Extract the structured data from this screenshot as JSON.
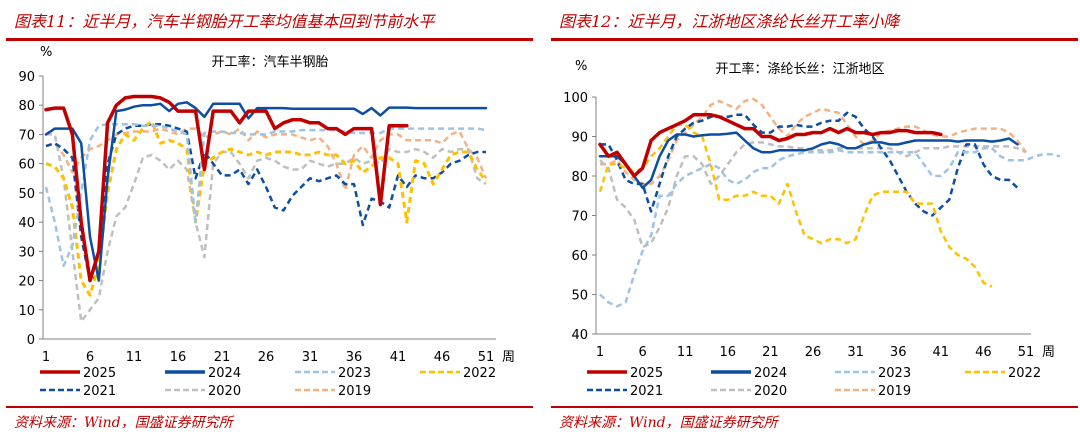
{
  "chart_data": [
    {
      "type": "line",
      "figure_title": "图表11：近半月，汽车半钢胎开工率均值基本回到节前水平",
      "title": "开工率：汽车半钢胎",
      "ylabel": "%",
      "xlabel": "周",
      "ylim": [
        0,
        90
      ],
      "yticks": [
        0,
        10,
        20,
        30,
        40,
        50,
        60,
        70,
        80,
        90
      ],
      "xticks": [
        1,
        6,
        11,
        16,
        21,
        26,
        31,
        36,
        41,
        46,
        51
      ],
      "source": "资料来源：Wind，国盛证券研究所",
      "series": [
        {
          "name": "2025",
          "color": "#c00000",
          "dash": false,
          "width": 3.5,
          "values": [
            78.5,
            79,
            79,
            70,
            40,
            20,
            30,
            74,
            80,
            82.5,
            83,
            83,
            83,
            82.5,
            81,
            78,
            78,
            78,
            58,
            78,
            78,
            78,
            74,
            78,
            78,
            78,
            72,
            74,
            75,
            75,
            74,
            74,
            72,
            72,
            70,
            72,
            72,
            72,
            46,
            73,
            73,
            73
          ]
        },
        {
          "name": "2024",
          "color": "#0b4ea2",
          "dash": false,
          "width": 2.5,
          "values": [
            70,
            72,
            72,
            72,
            67,
            35,
            20,
            55,
            78,
            78.5,
            79.5,
            80,
            80,
            80.5,
            78,
            80.5,
            81,
            79,
            76,
            80.5,
            80.5,
            80.5,
            80.5,
            75.5,
            79,
            79,
            79,
            79,
            78.8,
            78.8,
            78.8,
            78.8,
            78.8,
            78.8,
            78.8,
            78.8,
            77,
            79,
            76.5,
            79.2,
            79.2,
            79.2,
            79,
            79,
            79,
            79,
            79,
            79,
            79,
            79,
            79
          ]
        },
        {
          "name": "2023",
          "color": "#9dc3e6",
          "dash": true,
          "width": 2.5,
          "values": [
            52,
            40,
            25,
            32,
            50,
            68,
            73,
            73.5,
            73.5,
            73.5,
            73.5,
            73,
            73,
            73,
            72,
            71,
            70,
            40,
            70.5,
            71,
            71,
            70.5,
            70.5,
            70,
            70,
            70,
            71,
            71,
            71,
            71.5,
            71.5,
            71.5,
            71.5,
            71.5,
            71,
            70.5,
            70.5,
            70.5,
            70.5,
            72,
            72,
            72,
            72,
            72,
            72,
            72,
            72,
            72,
            72,
            72,
            71.5
          ]
        },
        {
          "name": "2022",
          "color": "#ffc000",
          "dash": true,
          "width": 3,
          "values": [
            60,
            59,
            55,
            45,
            20,
            15,
            25,
            50,
            65,
            70,
            68,
            72,
            74.5,
            67,
            68,
            67,
            65,
            40,
            60,
            62,
            64,
            65,
            64,
            63,
            64,
            63,
            64,
            64,
            64,
            63,
            63,
            64,
            63,
            63,
            60,
            61,
            57,
            59,
            62,
            62,
            60,
            40,
            61,
            60,
            53,
            58,
            63,
            64,
            64,
            58,
            54
          ]
        },
        {
          "name": "2021",
          "color": "#0b4ea2",
          "dash": true,
          "width": 2.5,
          "values": [
            66,
            67,
            65,
            62,
            35,
            20,
            22,
            60,
            70,
            72,
            73,
            73,
            73.5,
            73.5,
            73,
            72,
            71,
            55,
            64,
            60,
            56,
            56,
            58,
            53,
            58,
            52,
            45,
            44,
            49,
            52,
            55,
            54,
            55,
            56,
            53,
            53,
            39,
            48,
            47,
            45,
            56,
            52,
            56,
            55,
            55,
            57,
            60,
            61,
            63,
            64,
            64
          ]
        },
        {
          "name": "2020",
          "color": "#bfbfbf",
          "dash": true,
          "width": 2.5,
          "values": [
            70,
            70,
            55,
            30,
            6,
            10,
            14,
            30,
            42,
            45,
            53,
            62,
            63,
            61,
            58,
            61,
            58,
            40,
            28,
            60,
            64,
            64,
            60,
            55,
            61,
            62,
            61,
            59,
            58,
            58,
            61,
            60,
            59,
            60,
            60,
            62,
            60,
            61,
            60,
            65,
            64,
            64,
            65,
            64,
            62,
            65,
            64,
            65,
            65,
            55,
            53
          ]
        },
        {
          "name": "2019",
          "color": "#f4b183",
          "dash": true,
          "width": 2.5,
          "values": [
            66,
            67,
            63,
            57,
            62,
            65,
            66,
            68,
            70,
            70.5,
            71,
            71,
            71,
            72,
            71,
            70,
            72,
            72,
            69,
            70,
            71,
            70,
            72,
            68,
            71,
            69,
            70,
            70,
            70,
            69,
            68,
            69,
            66,
            60,
            51,
            63,
            66,
            62,
            68,
            70,
            70,
            68,
            68,
            68,
            68,
            67,
            70,
            71,
            65,
            62,
            55
          ]
        }
      ]
    },
    {
      "type": "line",
      "figure_title": "图表12：近半月，江浙地区涤纶长丝开工率小降",
      "title": "开工率：涤纶长丝：江浙地区",
      "ylabel": "%",
      "xlabel": "周",
      "ylim": [
        40,
        100
      ],
      "yticks": [
        40,
        50,
        60,
        70,
        80,
        90,
        100
      ],
      "xticks": [
        1,
        6,
        11,
        16,
        21,
        26,
        31,
        36,
        41,
        46,
        51
      ],
      "source": "资料来源：Wind，国盛证券研究所",
      "series": [
        {
          "name": "2025",
          "color": "#c00000",
          "dash": false,
          "width": 3.5,
          "values": [
            88,
            85,
            86,
            83,
            80,
            82,
            89,
            91,
            92,
            93,
            94,
            95.5,
            95.5,
            95.5,
            95,
            94,
            93,
            92,
            92,
            90,
            90,
            89,
            89.5,
            90.5,
            90.5,
            91,
            91,
            92,
            91,
            92,
            91,
            91,
            90.5,
            91,
            91,
            91.5,
            91.5,
            91,
            91,
            91,
            90.5
          ]
        },
        {
          "name": "2024",
          "color": "#0b4ea2",
          "dash": false,
          "width": 2.5,
          "values": [
            85,
            85,
            85,
            83,
            80,
            77,
            79,
            85,
            89,
            90.5,
            90.5,
            90,
            90.3,
            90.5,
            90.5,
            90.7,
            91,
            89,
            87,
            86,
            86,
            86.5,
            86.5,
            86.5,
            86.5,
            87,
            88,
            88.5,
            88,
            87,
            87,
            88,
            88.5,
            88.5,
            88,
            88,
            88.5,
            89,
            89,
            89,
            89,
            89,
            88.7,
            89,
            89,
            89,
            88.7,
            89,
            89.5,
            88
          ]
        },
        {
          "name": "2023",
          "color": "#9dc3e6",
          "dash": true,
          "width": 2.5,
          "values": [
            50,
            48,
            47,
            48,
            55,
            61,
            65,
            75,
            75,
            78,
            80,
            81,
            82,
            83,
            82,
            79,
            78,
            79,
            81,
            82,
            82,
            84,
            85,
            85.5,
            86,
            86,
            86,
            86,
            86.5,
            86,
            86,
            86,
            86,
            86,
            86,
            86,
            86,
            86,
            83,
            80,
            80,
            82,
            86,
            86,
            86,
            87,
            87,
            85,
            84,
            84,
            84,
            85,
            85.5,
            85.5,
            85
          ]
        },
        {
          "name": "2022",
          "color": "#ffc000",
          "dash": true,
          "width": 2.5,
          "values": [
            76,
            83,
            83,
            82,
            81,
            82,
            85,
            87,
            90,
            93,
            93,
            91,
            90,
            83,
            74,
            74,
            75,
            75,
            76,
            75,
            75,
            73,
            78,
            71,
            65,
            64,
            63,
            64,
            64,
            63,
            64,
            70,
            75,
            76,
            76,
            76,
            76,
            73,
            73,
            73,
            66,
            62,
            60,
            59,
            57,
            53,
            52
          ]
        },
        {
          "name": "2021",
          "color": "#0b4ea2",
          "dash": true,
          "width": 2.5,
          "values": [
            88,
            88,
            84,
            79,
            78,
            78,
            71,
            78,
            85,
            90,
            92,
            93.5,
            94,
            95,
            95,
            95,
            95.5,
            95.5,
            93,
            91,
            91,
            92.5,
            92.5,
            93,
            92.5,
            92.5,
            93.5,
            94,
            94,
            96,
            95,
            92,
            90,
            87,
            84,
            80,
            76,
            73,
            71,
            70,
            72,
            74,
            82,
            88,
            88,
            83,
            80,
            79,
            79,
            77
          ]
        },
        {
          "name": "2020",
          "color": "#bfbfbf",
          "dash": true,
          "width": 2.5,
          "values": [
            84,
            82,
            74,
            72,
            69,
            62,
            63,
            67,
            72,
            80,
            85,
            85,
            83,
            78,
            80,
            83,
            86,
            88,
            88.5,
            88.5,
            88,
            87.5,
            87.5,
            87,
            87,
            86.5,
            86.5,
            86.5,
            87,
            87,
            87,
            87,
            87,
            87,
            87,
            86,
            85,
            86,
            87,
            87,
            87,
            87.5,
            87.5,
            87.5,
            87.5,
            87.5,
            87.5,
            87.5,
            87.5,
            87,
            86
          ]
        },
        {
          "name": "2019",
          "color": "#f4b183",
          "dash": true,
          "width": 2.5,
          "values": [
            83,
            83,
            84,
            81,
            79,
            78,
            78,
            80,
            84,
            89,
            91,
            93,
            95,
            98,
            99,
            98,
            97,
            99,
            99.5,
            98,
            95,
            92,
            90,
            93,
            95,
            96,
            97,
            96.5,
            96,
            93,
            90,
            88,
            89,
            91,
            91.5,
            92,
            92.5,
            92.5,
            91.5,
            90.5,
            90,
            90,
            91,
            91.5,
            92,
            92,
            92,
            92,
            91,
            89,
            86
          ]
        }
      ]
    }
  ],
  "page": {
    "left_title": "图表11：近半月，汽车半钢胎开工率均值基本回到节前水平",
    "right_title": "图表12：近半月，江浙地区涤纶长丝开工率小降",
    "left_source": "资料来源：Wind，国盛证券研究所",
    "right_source": "资料来源：Wind，国盛证券研究所"
  }
}
